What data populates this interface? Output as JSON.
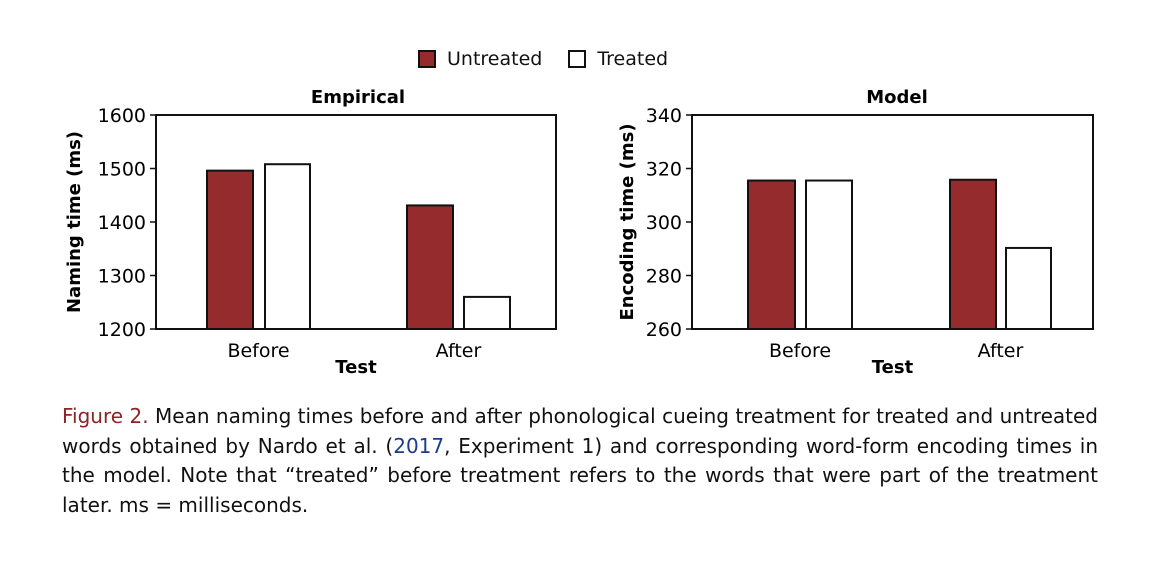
{
  "legend": {
    "items": [
      {
        "label": "Untreated",
        "color": "#962B2D"
      },
      {
        "label": "Treated",
        "color": "#FFFFFF"
      }
    ]
  },
  "chart_data": [
    {
      "type": "bar",
      "title": "Empirical",
      "xlabel": "Test",
      "ylabel": "Naming time (ms)",
      "categories": [
        "Before",
        "After"
      ],
      "ylim": [
        1200,
        1600
      ],
      "yticks": [
        1200,
        1300,
        1400,
        1500,
        1600
      ],
      "series": [
        {
          "name": "Untreated",
          "color": "#962B2D",
          "values": [
            1496,
            1431
          ]
        },
        {
          "name": "Treated",
          "color": "#FFFFFF",
          "values": [
            1508,
            1260
          ]
        }
      ]
    },
    {
      "type": "bar",
      "title": "Model",
      "xlabel": "Test",
      "ylabel": "Encoding time (ms)",
      "categories": [
        "Before",
        "After"
      ],
      "ylim": [
        260,
        340
      ],
      "yticks": [
        260,
        280,
        300,
        320,
        340
      ],
      "series": [
        {
          "name": "Untreated",
          "color": "#962B2D",
          "values": [
            315.5,
            315.8
          ]
        },
        {
          "name": "Treated",
          "color": "#FFFFFF",
          "values": [
            315.5,
            290.3
          ]
        }
      ]
    }
  ],
  "caption": {
    "label": "Figure 2.",
    "text_before": " Mean naming times before and after phonological cueing treatment for treated and untreated words obtained by Nardo et al. (",
    "cite_year": "2017",
    "text_after": ", Experiment 1) and corresponding word-form encoding times in the model. Note that “treated” before treatment refers to the words that were part of the treatment later. ms = milliseconds."
  }
}
